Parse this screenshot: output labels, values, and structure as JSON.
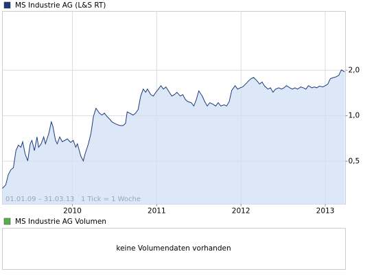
{
  "chart_data": {
    "type": "area",
    "log_scale": true,
    "grid": true,
    "series": [
      {
        "name": "MS Industrie AG (L&S RT)",
        "color": "#1d3b78",
        "area_color": "#dce8f8",
        "x": [
          2009.17,
          2009.21,
          2009.24,
          2009.27,
          2009.3,
          2009.33,
          2009.36,
          2009.39,
          2009.41,
          2009.44,
          2009.47,
          2009.5,
          2009.52,
          2009.55,
          2009.58,
          2009.6,
          2009.63,
          2009.66,
          2009.68,
          2009.72,
          2009.75,
          2009.77,
          2009.8,
          2009.82,
          2009.85,
          2009.88,
          2009.91,
          2009.94,
          2009.98,
          2010.01,
          2010.04,
          2010.06,
          2010.1,
          2010.13,
          2010.15,
          2010.19,
          2010.22,
          2010.25,
          2010.28,
          2010.32,
          2010.35,
          2010.38,
          2010.41,
          2010.45,
          2010.47,
          2010.5,
          2010.54,
          2010.57,
          2010.6,
          2010.63,
          2010.65,
          2010.68,
          2010.72,
          2010.75,
          2010.78,
          2010.81,
          2010.84,
          2010.87,
          2010.89,
          2010.93,
          2010.96,
          2010.99,
          2011.02,
          2011.05,
          2011.08,
          2011.11,
          2011.15,
          2011.18,
          2011.21,
          2011.24,
          2011.28,
          2011.31,
          2011.34,
          2011.37,
          2011.41,
          2011.44,
          2011.47,
          2011.5,
          2011.54,
          2011.57,
          2011.6,
          2011.63,
          2011.67,
          2011.7,
          2011.73,
          2011.76,
          2011.8,
          2011.83,
          2011.86,
          2011.89,
          2011.93,
          2011.96,
          2011.99,
          2012.02,
          2012.06,
          2012.09,
          2012.12,
          2012.15,
          2012.19,
          2012.22,
          2012.25,
          2012.28,
          2012.32,
          2012.35,
          2012.38,
          2012.41,
          2012.45,
          2012.48,
          2012.51,
          2012.54,
          2012.58,
          2012.61,
          2012.64,
          2012.67,
          2012.71,
          2012.74,
          2012.77,
          2012.8,
          2012.84,
          2012.87,
          2012.9,
          2012.93,
          2012.97,
          2013.0,
          2013.03,
          2013.06,
          2013.1,
          2013.13,
          2013.16,
          2013.19,
          2013.23
        ],
        "values": [
          0.331,
          0.349,
          0.408,
          0.439,
          0.453,
          0.588,
          0.639,
          0.619,
          0.673,
          0.558,
          0.503,
          0.652,
          0.687,
          0.588,
          0.724,
          0.619,
          0.652,
          0.724,
          0.652,
          0.763,
          0.911,
          0.846,
          0.687,
          0.652,
          0.724,
          0.673,
          0.687,
          0.702,
          0.666,
          0.687,
          0.619,
          0.652,
          0.541,
          0.503,
          0.558,
          0.652,
          0.763,
          0.99,
          1.12,
          1.04,
          1.01,
          1.04,
          0.99,
          0.94,
          0.91,
          0.89,
          0.87,
          0.86,
          0.86,
          0.89,
          1.06,
          1.04,
          1.01,
          1.04,
          1.1,
          1.35,
          1.5,
          1.43,
          1.5,
          1.38,
          1.35,
          1.43,
          1.5,
          1.58,
          1.5,
          1.55,
          1.43,
          1.35,
          1.38,
          1.43,
          1.35,
          1.38,
          1.28,
          1.24,
          1.22,
          1.16,
          1.28,
          1.46,
          1.35,
          1.24,
          1.16,
          1.22,
          1.19,
          1.16,
          1.22,
          1.16,
          1.18,
          1.16,
          1.24,
          1.47,
          1.58,
          1.5,
          1.53,
          1.55,
          1.63,
          1.7,
          1.76,
          1.79,
          1.7,
          1.62,
          1.67,
          1.57,
          1.5,
          1.53,
          1.43,
          1.5,
          1.53,
          1.5,
          1.53,
          1.58,
          1.53,
          1.5,
          1.53,
          1.5,
          1.55,
          1.53,
          1.5,
          1.58,
          1.53,
          1.55,
          1.53,
          1.57,
          1.55,
          1.58,
          1.62,
          1.76,
          1.79,
          1.81,
          1.85,
          2.01,
          1.95
        ]
      }
    ],
    "xlim": [
      2009.17,
      2013.24
    ],
    "xticks": [
      2010,
      2011,
      2012,
      2013
    ],
    "ylim": [
      0.26,
      4.9
    ],
    "yticks": [
      {
        "value": 0.5,
        "label": "0,5"
      },
      {
        "value": 1,
        "label": "1,0"
      },
      {
        "value": 2,
        "label": "2,0"
      }
    ],
    "annotation": "01.01.09 – 31.03.13   1 Tick = 1 Woche"
  },
  "volume_panel": {
    "legend": "MS Industrie AG Volumen",
    "legend_color": "#55b24a",
    "message": "keine Volumendaten vorhanden"
  }
}
